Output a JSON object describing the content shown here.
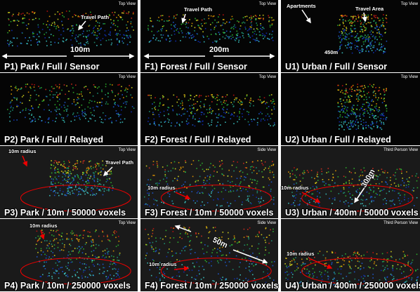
{
  "panels": [
    {
      "caption": "P1) Park / Full / Sensor",
      "view": "Top View",
      "annotations": [
        "Travel Path",
        "100m"
      ]
    },
    {
      "caption": "F1) Forest / Full / Sensor",
      "view": "Top View",
      "annotations": [
        "Travel Path",
        "200m"
      ]
    },
    {
      "caption": "U1) Urban / Full / Sensor",
      "view": "Top View",
      "annotations": [
        "Apartments",
        "Travel Area",
        "450m"
      ]
    },
    {
      "caption": "P2) Park / Full / Relayed",
      "view": "Top View",
      "annotations": []
    },
    {
      "caption": "F2) Forest / Full / Relayed",
      "view": "Top View",
      "annotations": []
    },
    {
      "caption": "U2) Urban / Full / Relayed",
      "view": "Top View",
      "annotations": []
    },
    {
      "caption": "P3) Park / 10m / 50000 voxels",
      "view": "Top View",
      "annotations": [
        "10m radius",
        "Travel Path"
      ]
    },
    {
      "caption": "F3) Forest / 10m / 50000 voxels",
      "view": "Side View",
      "annotations": [
        "10m radius"
      ]
    },
    {
      "caption": "U3) Urban / 400m / 50000 voxels",
      "view": "Third Person View",
      "annotations": [
        "10m radius",
        "300m"
      ]
    },
    {
      "caption": "P4) Park / 10m / 250000 voxels",
      "view": "Top View",
      "annotations": [
        "10m radius"
      ]
    },
    {
      "caption": "F4) Forest / 10m / 250000 voxels",
      "view": "Side View",
      "annotations": [
        "50m",
        "10m radius"
      ]
    },
    {
      "caption": "U4) Urban / 400m / 250000 voxels",
      "view": "Third Person View",
      "annotations": [
        "10m radius"
      ]
    }
  ]
}
